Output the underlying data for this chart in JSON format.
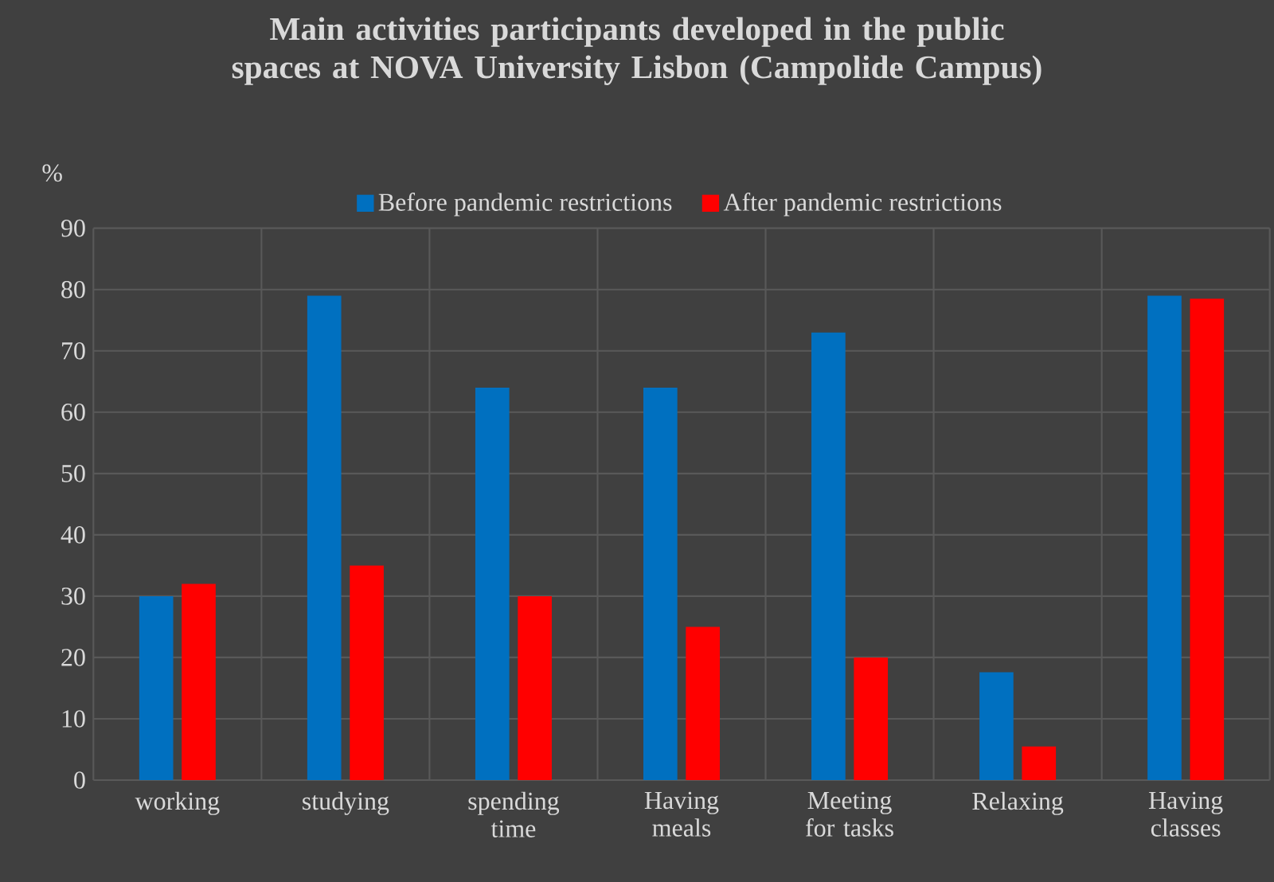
{
  "chart_data": {
    "type": "bar",
    "title": "Main activities participants developed in the public spaces at NOVA University Lisbon (Campolide Campus)",
    "ylabel": "%",
    "categories": [
      "working",
      "studying",
      "spending time",
      "Having meals",
      "Meeting for tasks",
      "Relaxing",
      "Having classes"
    ],
    "series": [
      {
        "name": "Before pandemic restrictions",
        "color": "#0070c0",
        "values": [
          30,
          79,
          64,
          64,
          73,
          17.6,
          79
        ]
      },
      {
        "name": "After pandemic restrictions",
        "color": "#ff0000",
        "values": [
          32,
          35,
          30,
          25,
          20,
          5.5,
          78.5
        ]
      }
    ],
    "ylim": [
      0,
      90
    ],
    "yticks": [
      0,
      10,
      20,
      30,
      40,
      50,
      60,
      70,
      80,
      90
    ],
    "grid": true,
    "legend": "top"
  }
}
